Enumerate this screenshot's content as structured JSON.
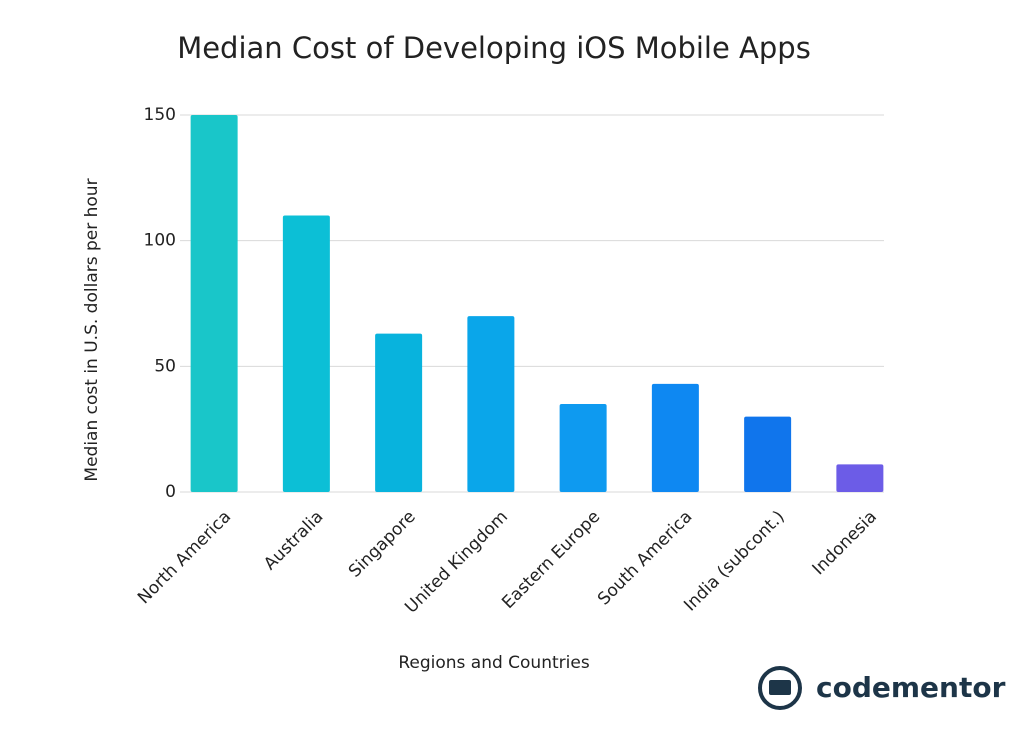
{
  "chart_data": {
    "type": "bar",
    "title": "Median Cost of Developing iOS Mobile Apps",
    "x_label": "Regions and Countries",
    "y_label": "Median cost in U.S. dollars per hour",
    "categories": [
      "North America",
      "Australia",
      "Singapore",
      "United Kingdom",
      "Eastern Europe",
      "South America",
      "India (subcont.)",
      "Indonesia"
    ],
    "values": [
      150,
      110,
      63,
      70,
      35,
      43,
      30,
      11
    ],
    "colors": [
      "#19c6c9",
      "#0cbfd6",
      "#08b3dd",
      "#0aa6ea",
      "#0e9af0",
      "#0e88f2",
      "#1075ec",
      "#6c5ce7"
    ],
    "ylim": [
      0,
      150
    ],
    "yticks": [
      0,
      50,
      100,
      150
    ],
    "grid": true
  },
  "logo": {
    "text": "codementor"
  }
}
